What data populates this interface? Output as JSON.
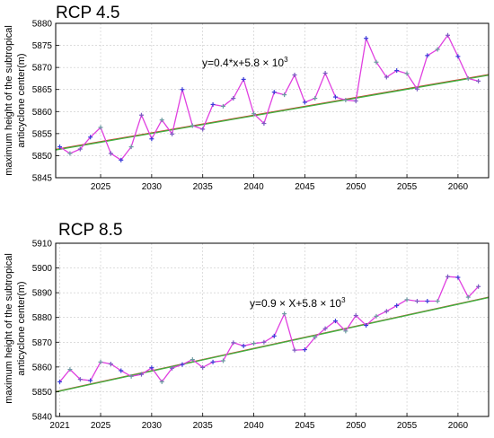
{
  "chart_data": [
    {
      "type": "line",
      "title": "RCP 4.5",
      "ylabel": [
        "maximum height of the subtropical",
        "anticyclone center(m)"
      ],
      "equation": {
        "text": "y=0.4*x+5.8 × 10",
        "sup": "3"
      },
      "x": [
        2021,
        2022,
        2023,
        2024,
        2025,
        2026,
        2027,
        2028,
        2029,
        2030,
        2031,
        2032,
        2033,
        2034,
        2035,
        2036,
        2037,
        2038,
        2039,
        2040,
        2041,
        2042,
        2043,
        2044,
        2045,
        2046,
        2047,
        2048,
        2049,
        2050,
        2051,
        2052,
        2053,
        2054,
        2055,
        2056,
        2057,
        2058,
        2059,
        2060,
        2061,
        2062
      ],
      "series": [
        {
          "values": [
            5852,
            5850.5,
            5851.5,
            5854.2,
            5856.4,
            5850.5,
            5849,
            5852,
            5859.2,
            5853.8,
            5858.1,
            5854.9,
            5865,
            5856.8,
            5856,
            5861.6,
            5861.2,
            5863,
            5867.3,
            5859.5,
            5857.3,
            5864.4,
            5863.8,
            5868.3,
            5862.1,
            5863,
            5868.7,
            5863.3,
            5862.6,
            5862.4,
            5876.6,
            5871.2,
            5867.8,
            5869.3,
            5868.6,
            5865.1,
            5872.7,
            5874.1,
            5877.3,
            5872.5,
            5867.5,
            5866.9
          ],
          "color": "#e040e0"
        },
        {
          "fit": [
            0.4,
            5851.4
          ],
          "color": "#e02020"
        },
        {
          "fit": [
            0.4,
            5851.3
          ],
          "color": "#40b040"
        }
      ],
      "xlim": [
        2020.6,
        2063
      ],
      "ylim": [
        5845,
        5880
      ],
      "yticks": [
        5845,
        5850,
        5855,
        5860,
        5865,
        5870,
        5875,
        5880
      ],
      "xticks": [
        2025,
        2030,
        2035,
        2040,
        2045,
        2050,
        2055,
        2060
      ],
      "grid": true
    },
    {
      "type": "line",
      "title": "RCP 8.5",
      "ylabel": [
        "maximum height of the subtropical",
        "anticyclone center(m)"
      ],
      "equation": {
        "text": "y=0.9 × X+5.8 × 10",
        "sup": "3"
      },
      "x": [
        2021,
        2022,
        2023,
        2024,
        2025,
        2026,
        2027,
        2028,
        2029,
        2030,
        2031,
        2032,
        2033,
        2034,
        2035,
        2036,
        2037,
        2038,
        2039,
        2040,
        2041,
        2042,
        2043,
        2044,
        2045,
        2046,
        2047,
        2048,
        2049,
        2050,
        2051,
        2052,
        2053,
        2054,
        2055,
        2056,
        2057,
        2058,
        2059,
        2060,
        2061,
        2062
      ],
      "series": [
        {
          "values": [
            5854,
            5859,
            5855,
            5854.5,
            5862,
            5861.2,
            5858.5,
            5856.2,
            5857,
            5859.7,
            5854,
            5859.5,
            5861,
            5863,
            5859.8,
            5862,
            5862.5,
            5869.8,
            5868.5,
            5869.5,
            5870,
            5872.5,
            5881.5,
            5866.8,
            5867,
            5872,
            5875.5,
            5878.6,
            5874.5,
            5880.8,
            5876.8,
            5880.5,
            5882.5,
            5884.8,
            5887.2,
            5886.6,
            5886.6,
            5886.6,
            5896.5,
            5896.2,
            5888.2,
            5892.5
          ],
          "color": "#e040e0"
        },
        {
          "fit": [
            0.9,
            5850
          ],
          "color": "#e02020"
        },
        {
          "fit": [
            0.9,
            5849.9
          ],
          "color": "#40b040"
        }
      ],
      "xlim": [
        2020.6,
        2063
      ],
      "ylim": [
        5840,
        5910
      ],
      "yticks": [
        5840,
        5850,
        5860,
        5870,
        5880,
        5890,
        5900,
        5910
      ],
      "xticks": [
        2021,
        2025,
        2030,
        2035,
        2040,
        2045,
        2050,
        2055,
        2060
      ],
      "grid": true
    }
  ]
}
